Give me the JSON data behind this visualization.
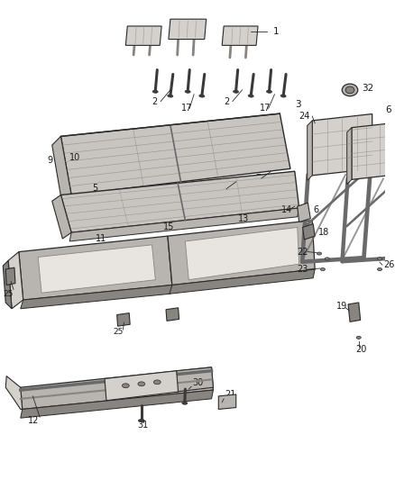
{
  "bg_color": "#ffffff",
  "fig_width": 4.38,
  "fig_height": 5.33,
  "dpi": 100,
  "line_color": "#2a2a2a",
  "label_color": "#1a1a1a",
  "gray_light": "#d4d0cc",
  "gray_mid": "#b8b4b0",
  "gray_dark": "#888480",
  "frame_color": "#6a6a6a",
  "white": "#f8f8f8",
  "seat_fabric": "#c8c4c0",
  "seat_stripe": "#dedad6",
  "bolt_color": "#3a3a3a"
}
